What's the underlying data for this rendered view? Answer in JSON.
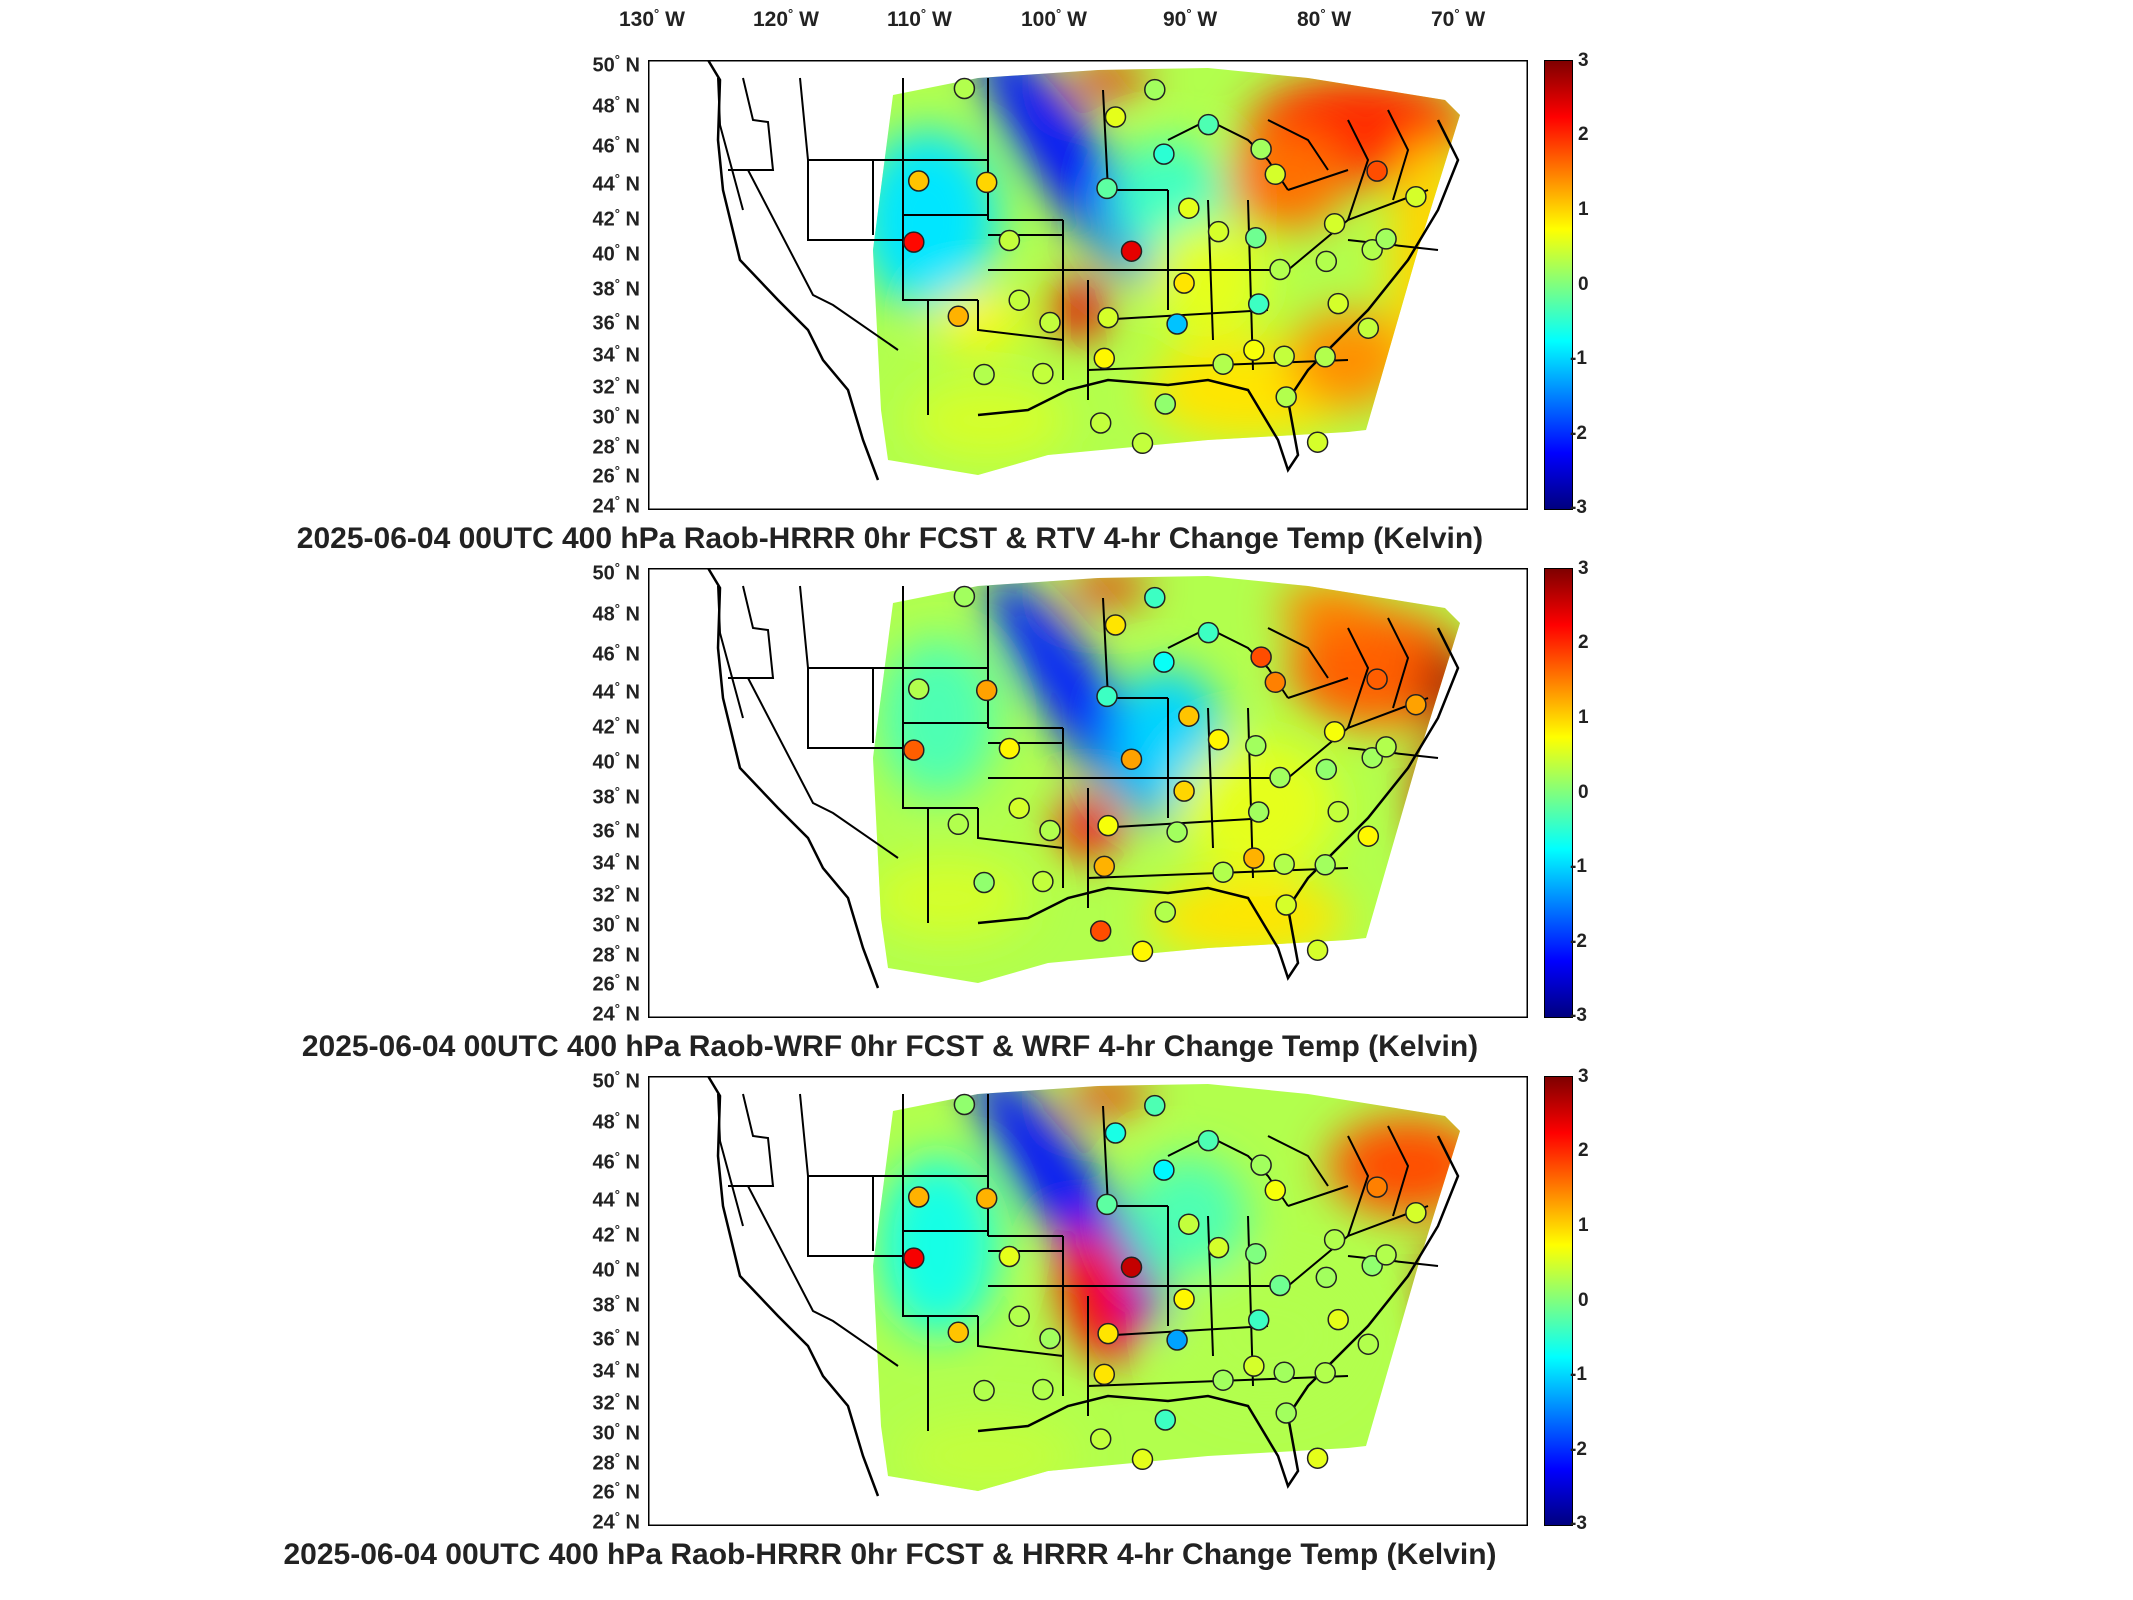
{
  "longitude_labels": [
    "130",
    "120",
    "110",
    "100",
    "90",
    "80",
    "70"
  ],
  "longitude_hemisphere": "W",
  "latitude_labels": [
    "50",
    "48",
    "46",
    "44",
    "42",
    "40",
    "38",
    "36",
    "34",
    "32",
    "30",
    "28",
    "26",
    "24"
  ],
  "latitude_hemisphere": "N",
  "degree_symbol": "°",
  "colorbar": {
    "ticks": [
      "3",
      "2",
      "1",
      "0",
      "-1",
      "-2",
      "-3"
    ],
    "colormap": "jet",
    "range": [
      -3,
      3
    ],
    "unit_text": "Kelvin"
  },
  "colors": {
    "warm": "#d83b12",
    "cool": "#1f4fe0",
    "neutral": "#8be88a",
    "border": "#000000"
  },
  "panels": [
    {
      "title": "2025-06-04 00UTC 400 hPa Raob-HRRR 0hr FCST & RTV 4-hr Change Temp (Kelvin)"
    },
    {
      "title": "2025-06-04 00UTC 400 hPa Raob-WRF 0hr FCST & WRF 4-hr Change Temp (Kelvin)"
    },
    {
      "title": "2025-06-04 00UTC 400 hPa Raob-HRRR 0hr FCST & HRRR 4-hr Change Temp (Kelvin)"
    }
  ],
  "raob_markers": [
    {
      "lon": -108.5,
      "lat": 48.6,
      "p": [
        0.3,
        0.2,
        0.1
      ]
    },
    {
      "lon": -96.7,
      "lat": 47.0,
      "p": [
        0.6,
        0.9,
        -0.6
      ]
    },
    {
      "lon": -93.6,
      "lat": 48.6,
      "p": [
        0.2,
        -0.4,
        -0.3
      ]
    },
    {
      "lon": -106.6,
      "lat": 43.1,
      "p": [
        1.0,
        1.3,
        1.2
      ]
    },
    {
      "lon": -111.8,
      "lat": 43.1,
      "p": [
        1.1,
        0.3,
        1.2
      ]
    },
    {
      "lon": -89.5,
      "lat": 46.5,
      "p": [
        -0.3,
        -0.4,
        -0.3
      ]
    },
    {
      "lon": -85.5,
      "lat": 45.0,
      "p": [
        0.2,
        1.8,
        0.2
      ]
    },
    {
      "lon": -84.5,
      "lat": 43.5,
      "p": [
        0.5,
        1.5,
        0.7
      ]
    },
    {
      "lon": -93.0,
      "lat": 44.8,
      "p": [
        -0.5,
        -0.7,
        -0.8
      ]
    },
    {
      "lon": -97.4,
      "lat": 42.8,
      "p": [
        -0.2,
        -0.4,
        -0.2
      ]
    },
    {
      "lon": -91.2,
      "lat": 41.6,
      "p": [
        0.6,
        1.1,
        0.4
      ]
    },
    {
      "lon": -89.0,
      "lat": 40.2,
      "p": [
        0.5,
        0.8,
        0.5
      ]
    },
    {
      "lon": -86.2,
      "lat": 39.8,
      "p": [
        -0.1,
        0.2,
        0.0
      ]
    },
    {
      "lon": -80.2,
      "lat": 40.5,
      "p": [
        0.5,
        0.7,
        0.3
      ]
    },
    {
      "lon": -76.7,
      "lat": 43.5,
      "p": [
        1.8,
        1.7,
        1.5
      ]
    },
    {
      "lon": -73.9,
      "lat": 41.9,
      "p": [
        0.5,
        1.3,
        0.5
      ]
    },
    {
      "lon": -112.0,
      "lat": 39.5,
      "p": [
        2.2,
        1.7,
        2.3
      ]
    },
    {
      "lon": -104.8,
      "lat": 39.7,
      "p": [
        0.4,
        0.8,
        0.6
      ]
    },
    {
      "lon": -95.6,
      "lat": 39.1,
      "p": [
        2.4,
        1.3,
        2.6
      ]
    },
    {
      "lon": -91.7,
      "lat": 37.2,
      "p": [
        0.9,
        1.0,
        0.8
      ]
    },
    {
      "lon": -84.5,
      "lat": 37.9,
      "p": [
        0.3,
        0.2,
        -0.1
      ]
    },
    {
      "lon": -81.0,
      "lat": 38.3,
      "p": [
        0.3,
        0.1,
        0.2
      ]
    },
    {
      "lon": -77.5,
      "lat": 38.9,
      "p": [
        0.3,
        0.2,
        0.1
      ]
    },
    {
      "lon": -76.4,
      "lat": 39.5,
      "p": [
        0.2,
        0.3,
        0.3
      ]
    },
    {
      "lon": -108.5,
      "lat": 35.2,
      "p": [
        1.2,
        0.3,
        1.1
      ]
    },
    {
      "lon": -104.0,
      "lat": 36.2,
      "p": [
        0.4,
        0.5,
        0.3
      ]
    },
    {
      "lon": -97.4,
      "lat": 35.2,
      "p": [
        0.5,
        0.7,
        0.9
      ]
    },
    {
      "lon": -92.3,
      "lat": 34.8,
      "p": [
        -1.1,
        0.2,
        -1.3
      ]
    },
    {
      "lon": -86.2,
      "lat": 35.9,
      "p": [
        -0.4,
        0.2,
        -0.4
      ]
    },
    {
      "lon": -80.3,
      "lat": 35.8,
      "p": [
        0.5,
        0.4,
        0.6
      ]
    },
    {
      "lon": -78.2,
      "lat": 34.3,
      "p": [
        0.4,
        0.8,
        0.3
      ]
    },
    {
      "lon": -89.0,
      "lat": 32.4,
      "p": [
        0.3,
        0.3,
        0.2
      ]
    },
    {
      "lon": -86.7,
      "lat": 33.2,
      "p": [
        0.7,
        1.2,
        0.5
      ]
    },
    {
      "lon": -84.5,
      "lat": 32.8,
      "p": [
        0.4,
        0.3,
        0.2
      ]
    },
    {
      "lon": -81.5,
      "lat": 32.7,
      "p": [
        0.3,
        0.2,
        0.3
      ]
    },
    {
      "lon": -93.3,
      "lat": 30.1,
      "p": [
        0.1,
        0.3,
        -0.4
      ]
    },
    {
      "lon": -84.5,
      "lat": 30.4,
      "p": [
        0.3,
        0.5,
        0.2
      ]
    },
    {
      "lon": -106.5,
      "lat": 31.8,
      "p": [
        0.3,
        0.1,
        0.3
      ]
    },
    {
      "lon": -102.2,
      "lat": 31.9,
      "p": [
        0.4,
        0.4,
        0.3
      ]
    },
    {
      "lon": -98.0,
      "lat": 29.0,
      "p": [
        0.4,
        1.8,
        0.4
      ]
    },
    {
      "lon": -95.0,
      "lat": 27.8,
      "p": [
        0.4,
        0.8,
        0.6
      ]
    },
    {
      "lon": -82.4,
      "lat": 27.7,
      "p": [
        0.5,
        0.5,
        0.6
      ]
    },
    {
      "lon": -97.7,
      "lat": 32.8,
      "p": [
        0.8,
        1.2,
        0.9
      ]
    },
    {
      "lon": -101.7,
      "lat": 34.9,
      "p": [
        0.4,
        0.3,
        0.2
      ]
    }
  ]
}
